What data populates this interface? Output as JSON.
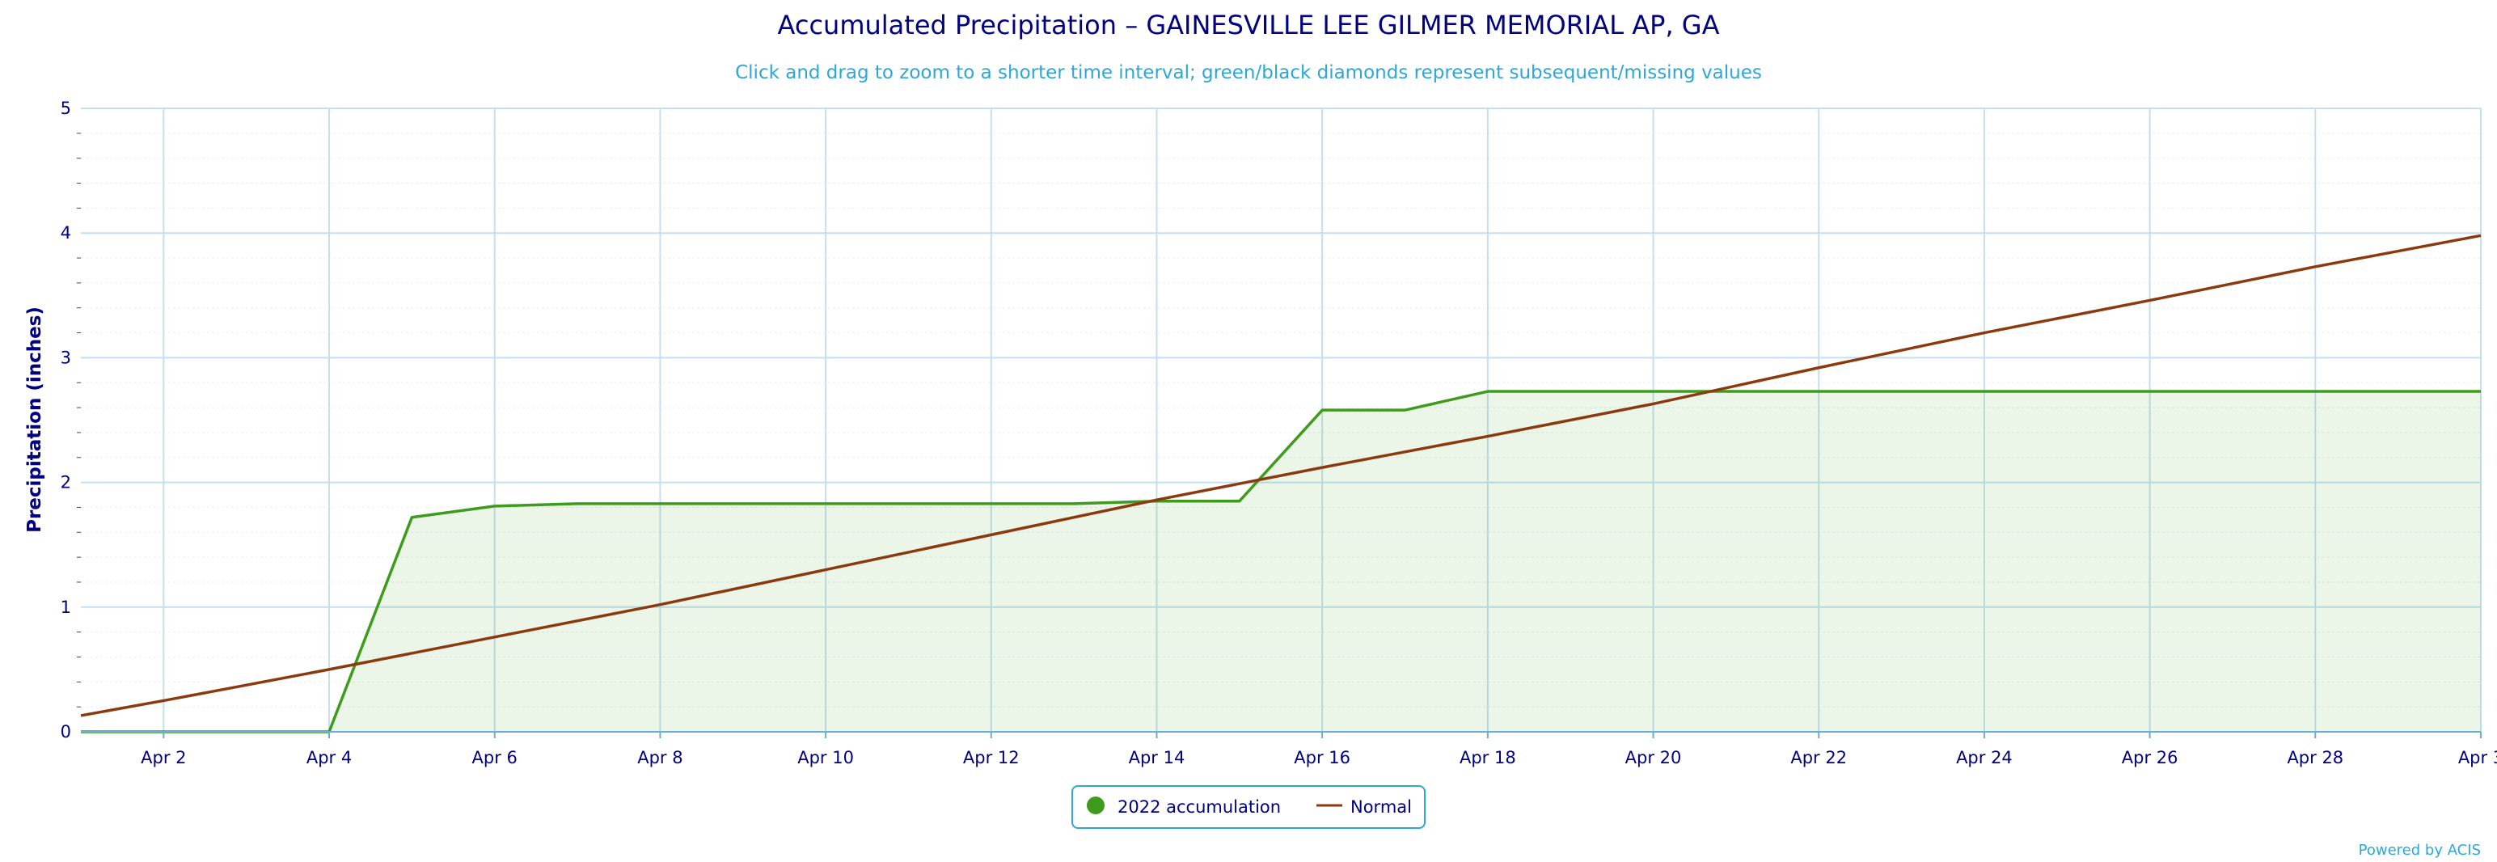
{
  "chart_data": {
    "type": "line",
    "title": "Accumulated Precipitation – GAINESVILLE LEE GILMER MEMORIAL AP, GA",
    "subtitle": "Click and drag to zoom to a shorter time interval; green/black diamonds represent subsequent/missing values",
    "xlabel": "",
    "ylabel": "Precipitation (inches)",
    "x_tick_labels": [
      "Apr 2",
      "Apr 4",
      "Apr 6",
      "Apr 8",
      "Apr 10",
      "Apr 12",
      "Apr 14",
      "Apr 16",
      "Apr 18",
      "Apr 20",
      "Apr 22",
      "Apr 24",
      "Apr 26",
      "Apr 28",
      "Apr 3"
    ],
    "y_tick_labels": [
      "0",
      "1",
      "2",
      "3",
      "4",
      "5"
    ],
    "xlim": [
      "2022-04-01",
      "2022-04-30"
    ],
    "ylim": [
      0,
      5
    ],
    "grid": true,
    "legend_position": "bottom-center",
    "series": [
      {
        "name": "2022 accumulation",
        "color": "#3f9b1c",
        "fill": "area",
        "x": [
          "2022-04-01",
          "2022-04-02",
          "2022-04-03",
          "2022-04-04",
          "2022-04-05",
          "2022-04-06",
          "2022-04-07",
          "2022-04-08",
          "2022-04-09",
          "2022-04-10",
          "2022-04-11",
          "2022-04-12",
          "2022-04-13",
          "2022-04-14",
          "2022-04-15",
          "2022-04-16",
          "2022-04-17",
          "2022-04-18",
          "2022-04-19",
          "2022-04-20",
          "2022-04-21",
          "2022-04-22",
          "2022-04-23",
          "2022-04-24",
          "2022-04-25",
          "2022-04-26",
          "2022-04-27",
          "2022-04-28",
          "2022-04-29",
          "2022-04-30"
        ],
        "values": [
          0,
          0,
          0,
          0,
          1.72,
          1.81,
          1.83,
          1.83,
          1.83,
          1.83,
          1.83,
          1.83,
          1.83,
          1.85,
          1.85,
          2.58,
          2.58,
          2.73,
          2.73,
          2.73,
          2.73,
          2.73,
          2.73,
          2.73,
          2.73,
          2.73,
          2.73,
          2.73,
          2.73,
          2.73
        ]
      },
      {
        "name": "Normal",
        "color": "#8b3a0f",
        "fill": "none",
        "x": [
          "2022-04-01",
          "2022-04-02",
          "2022-04-04",
          "2022-04-06",
          "2022-04-08",
          "2022-04-10",
          "2022-04-12",
          "2022-04-14",
          "2022-04-16",
          "2022-04-18",
          "2022-04-20",
          "2022-04-22",
          "2022-04-24",
          "2022-04-26",
          "2022-04-28",
          "2022-04-30"
        ],
        "values": [
          0.13,
          0.25,
          0.5,
          0.76,
          1.02,
          1.3,
          1.58,
          1.86,
          2.12,
          2.37,
          2.63,
          2.92,
          3.2,
          3.46,
          3.73,
          3.98
        ]
      }
    ],
    "colors": {
      "title": "#000080",
      "subtitle": "#2ea6d6",
      "grid": "#c6dff0",
      "legend_border": "#2ea6d6"
    }
  },
  "credit": "Powered by ACIS"
}
